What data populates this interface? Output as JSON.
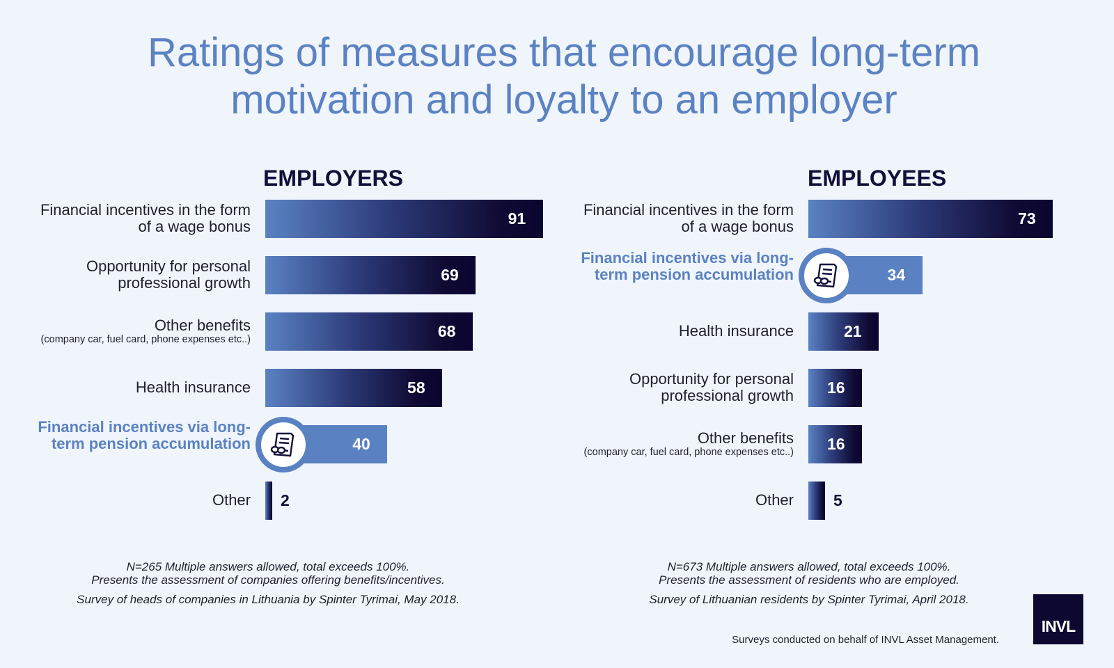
{
  "title": {
    "line1": "Ratings of measures that encourage long-term",
    "line2": "motivation and loyalty to an employer"
  },
  "chart_data": [
    {
      "type": "bar",
      "orientation": "horizontal",
      "title": "EMPLOYERS",
      "unit": "%",
      "xlim": [
        0,
        100
      ],
      "categories": [
        {
          "label": "Financial incentives in the form of a wage bonus",
          "value": 91
        },
        {
          "label": "Opportunity for personal professional growth",
          "value": 69
        },
        {
          "label": "Other benefits",
          "note": "(company car, fuel card, phone expenses etc..)",
          "value": 68
        },
        {
          "label": "Health insurance",
          "value": 58
        },
        {
          "label": "Financial incentives via long-term pension accumulation",
          "value": 40,
          "highlight": true
        },
        {
          "label": "Other",
          "value": 2
        }
      ],
      "notes": {
        "line1": "N=265     Multiple answers allowed, total exceeds 100%.",
        "line2": "Presents the assessment of companies offering benefits/incentives.",
        "line3": "Survey of heads of companies in Lithuania by Spinter Tyrimai, May 2018."
      }
    },
    {
      "type": "bar",
      "orientation": "horizontal",
      "title": "EMPLOYEES",
      "unit": "%",
      "xlim": [
        0,
        100
      ],
      "categories": [
        {
          "label": "Financial incentives in the form of a wage bonus",
          "value": 73
        },
        {
          "label": "Financial incentives via long-term pension accumulation",
          "value": 34,
          "highlight": true
        },
        {
          "label": "Health insurance",
          "value": 21
        },
        {
          "label": "Opportunity for personal professional growth",
          "value": 16
        },
        {
          "label": "Other benefits",
          "note": "(company car, fuel card, phone expenses etc..)",
          "value": 16
        },
        {
          "label": "Other",
          "value": 5
        }
      ],
      "notes": {
        "line1": "N=673     Multiple answers allowed, total exceeds 100%.",
        "line2": "Presents the assessment of residents who are employed.",
        "line3": "Survey of Lithuanian residents by Spinter Tyrimai, April 2018."
      }
    }
  ],
  "colors": {
    "title": "#5b82c2",
    "bar_start": "#5a82c3",
    "bar_end": "#0a0530",
    "highlight": "#5a82c3"
  },
  "icons": {
    "highlight_badge": "pension-document-glasses-icon"
  },
  "footer": {
    "note": "Surveys conducted on behalf of INVL Asset Management.",
    "logo_text": "INVL"
  }
}
